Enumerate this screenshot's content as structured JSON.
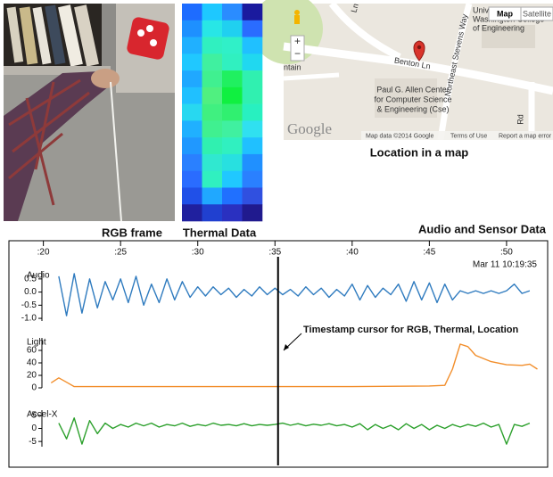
{
  "rgb_frame": {
    "caption": "RGB frame"
  },
  "thermal": {
    "caption": "Thermal Data",
    "cells": [
      [
        "#1e6cff",
        "#1ec8ff",
        "#2a8cff",
        "#1a1a9e"
      ],
      [
        "#1e90ff",
        "#28e6e6",
        "#20d0f0",
        "#2a6cff"
      ],
      [
        "#20b0ff",
        "#30f0c0",
        "#30f0c8",
        "#20c0ff"
      ],
      [
        "#20c8ff",
        "#40f0a0",
        "#30f0c0",
        "#20d8f0"
      ],
      [
        "#20a8ff",
        "#40f090",
        "#20f060",
        "#30f0b0"
      ],
      [
        "#20c0ff",
        "#50f080",
        "#10f040",
        "#30f0b0"
      ],
      [
        "#28d8f0",
        "#40f080",
        "#30f070",
        "#28f0c0"
      ],
      [
        "#20b0ff",
        "#40f090",
        "#40f0a0",
        "#30e0f0"
      ],
      [
        "#2098ff",
        "#30f0b0",
        "#30f0c0",
        "#20c0ff"
      ],
      [
        "#2a80ff",
        "#30e8d0",
        "#28e0e0",
        "#2090ff"
      ],
      [
        "#2a6cff",
        "#30f0c0",
        "#20c8ff",
        "#2a80ff"
      ],
      [
        "#2050e8",
        "#20a8ff",
        "#2070ff",
        "#3050e0"
      ],
      [
        "#20209e",
        "#2040d0",
        "#2a30c0",
        "#201a8e"
      ]
    ]
  },
  "map": {
    "caption": "Location in a map",
    "buttons": [
      "Map",
      "Satellite"
    ],
    "zoom": [
      "+",
      "−"
    ],
    "labels": {
      "university": [
        "University of",
        "Washington College",
        "of Engineering"
      ],
      "benton": "Benton Ln",
      "stevens": "Northeast Stevens Way",
      "ln": "Ln",
      "rd": "Rd",
      "fountain": "ntain",
      "allen": [
        "Paul G. Allen Center",
        "for Computer Science",
        "& Engineering (Cse)"
      ],
      "logo": "Google"
    },
    "footer": [
      "Map data ©2014 Google",
      "Terms of Use",
      "Report a map error"
    ]
  },
  "sensor_panel": {
    "title": "Audio and Sensor Data",
    "timestamp": "Mar 11 10:19:35",
    "cursor": {
      "x": 35.2,
      "label": "Timestamp cursor for RGB, Thermal, Location"
    }
  },
  "chart_data": [
    {
      "type": "line",
      "title": "Audio",
      "color": "#2f7bbf",
      "xlim": [
        18,
        52.2
      ],
      "xticks": [
        {
          "value": 20,
          "label": ":20"
        },
        {
          "value": 25,
          "label": ":25"
        },
        {
          "value": 30,
          "label": ":30"
        },
        {
          "value": 35,
          "label": ":35"
        },
        {
          "value": 40,
          "label": ":40"
        },
        {
          "value": 45,
          "label": ":45"
        },
        {
          "value": 50,
          "label": ":50"
        }
      ],
      "ylim": [
        -1.1,
        0.8
      ],
      "yticks": [
        0.5,
        {
          "value": 0,
          "label": "0.0"
        },
        -0.5,
        {
          "value": -1,
          "label": "-1.0"
        }
      ],
      "x": [
        21,
        21.5,
        22,
        22.5,
        23,
        23.5,
        24,
        24.5,
        25,
        25.5,
        26,
        26.5,
        27,
        27.5,
        28,
        28.5,
        29,
        29.5,
        30,
        30.5,
        31,
        31.5,
        32,
        32.5,
        33,
        33.5,
        34,
        34.5,
        35,
        35.5,
        36,
        36.5,
        37,
        37.5,
        38,
        38.5,
        39,
        39.5,
        40,
        40.5,
        41,
        41.5,
        42,
        42.5,
        43,
        43.5,
        44,
        44.5,
        45,
        45.5,
        46,
        46.5,
        47,
        47.5,
        48,
        48.5,
        49,
        49.5,
        50,
        50.5,
        51,
        51.5
      ],
      "values": [
        0.6,
        -0.9,
        0.7,
        -0.8,
        0.5,
        -0.6,
        0.4,
        -0.3,
        0.5,
        -0.4,
        0.6,
        -0.5,
        0.3,
        -0.4,
        0.5,
        -0.3,
        0.4,
        -0.2,
        0.2,
        -0.15,
        0.2,
        -0.1,
        0.15,
        -0.2,
        0.1,
        -0.15,
        0.2,
        -0.1,
        0.15,
        -0.1,
        0.1,
        -0.15,
        0.2,
        -0.1,
        0.15,
        -0.2,
        0.1,
        -0.15,
        0.3,
        -0.3,
        0.25,
        -0.2,
        0.15,
        -0.1,
        0.3,
        -0.35,
        0.4,
        -0.3,
        0.35,
        -0.4,
        0.3,
        -0.3,
        0.05,
        -0.05,
        0.05,
        -0.05,
        0.05,
        -0.05,
        0.05,
        0.3,
        -0.05,
        0.05
      ]
    },
    {
      "type": "line",
      "title": "Light",
      "color": "#f28e2b",
      "xlim": [
        18,
        52.2
      ],
      "ylim": [
        0,
        80
      ],
      "yticks": [
        0,
        20,
        40,
        60
      ],
      "x": [
        20.5,
        21,
        21.5,
        22,
        25,
        30,
        35,
        40,
        45,
        46,
        46.5,
        47,
        47.5,
        48,
        49,
        50,
        51,
        51.5,
        52
      ],
      "values": [
        8,
        16,
        9,
        2,
        2,
        2,
        2,
        2,
        3,
        4,
        30,
        70,
        66,
        52,
        42,
        37,
        36,
        38,
        30
      ]
    },
    {
      "type": "line",
      "title": "Accel-X",
      "color": "#2ca02c",
      "xlim": [
        18,
        52.2
      ],
      "ylim": [
        -7,
        7
      ],
      "yticks": [
        -5,
        0,
        5
      ],
      "x": [
        21,
        21.5,
        22,
        22.5,
        23,
        23.5,
        24,
        24.5,
        25,
        25.5,
        26,
        26.5,
        27,
        27.5,
        28,
        28.5,
        29,
        29.5,
        30,
        30.5,
        31,
        31.5,
        32,
        32.5,
        33,
        33.5,
        34,
        34.5,
        35,
        35.5,
        36,
        36.5,
        37,
        37.5,
        38,
        38.5,
        39,
        39.5,
        40,
        40.5,
        41,
        41.5,
        42,
        42.5,
        43,
        43.5,
        44,
        44.5,
        45,
        45.5,
        46,
        46.5,
        47,
        47.5,
        48,
        48.5,
        49,
        49.5,
        50,
        50.5,
        51,
        51.5
      ],
      "values": [
        2,
        -4,
        4,
        -6,
        3,
        -2,
        2,
        0,
        1.5,
        0.5,
        2,
        1,
        2,
        0.5,
        1.5,
        1,
        2,
        0.8,
        1.5,
        1,
        2,
        1.2,
        1.5,
        1,
        1.8,
        1,
        1.5,
        1.2,
        1.5,
        2,
        1.2,
        1.8,
        1,
        1.6,
        1.2,
        1.8,
        1,
        1.5,
        0.5,
        1.8,
        -0.5,
        1.5,
        0,
        1.2,
        -0.5,
        1.8,
        0,
        1.5,
        -0.5,
        1.2,
        0,
        1.5,
        0.5,
        1.5,
        0.8,
        2,
        0.5,
        1.5,
        -6,
        1.5,
        0.8,
        2
      ]
    }
  ]
}
